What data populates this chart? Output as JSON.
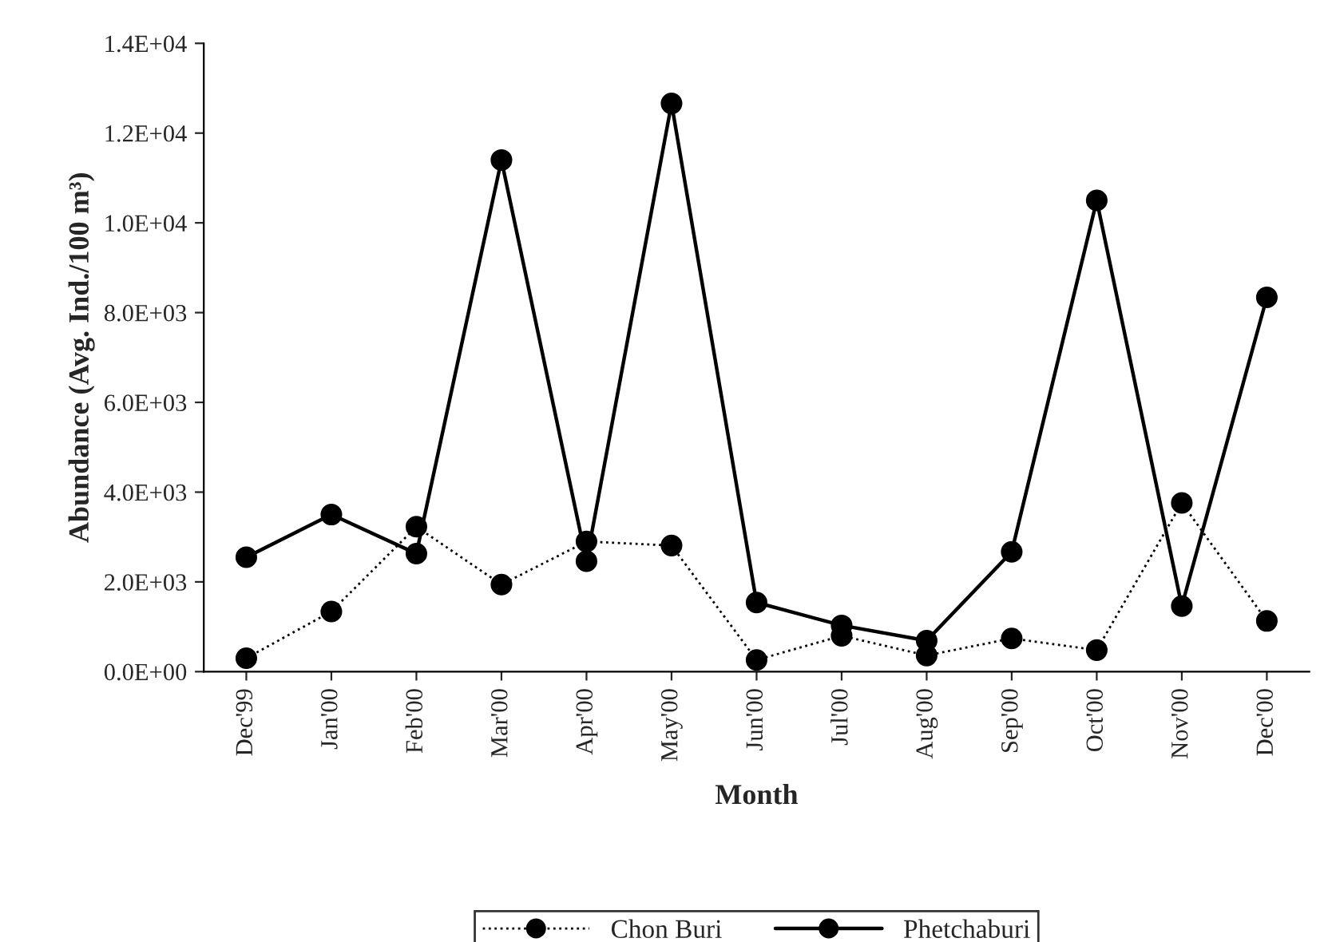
{
  "chart_data": {
    "type": "line",
    "xlabel": "Month",
    "ylabel": "Abundance (Avg. Ind./100 m³)",
    "categories": [
      "Dec'99",
      "Jan'00",
      "Feb'00",
      "Mar'00",
      "Apr'00",
      "May'00",
      "Jun'00",
      "Jul'00",
      "Aug'00",
      "Sep'00",
      "Oct'00",
      "Nov'00",
      "Dec'00"
    ],
    "series": [
      {
        "name": "Chon Buri",
        "color": "#000000",
        "line_style": "dotted",
        "values": [
          300,
          1340,
          3230,
          1940,
          2900,
          2810,
          260,
          800,
          360,
          740,
          480,
          3760,
          1130
        ]
      },
      {
        "name": "Phetchaburi",
        "color": "#000000",
        "line_style": "solid",
        "values": [
          2550,
          3500,
          2630,
          11400,
          2460,
          12660,
          1540,
          1030,
          690,
          2670,
          10500,
          1460,
          8340
        ]
      }
    ],
    "marker": "circle",
    "ylim": [
      0,
      14000
    ],
    "yticks": [
      {
        "value": 0,
        "label": "0.0E+00"
      },
      {
        "value": 2000,
        "label": "2.0E+03"
      },
      {
        "value": 4000,
        "label": "4.0E+03"
      },
      {
        "value": 6000,
        "label": "6.0E+03"
      },
      {
        "value": 8000,
        "label": "8.0E+03"
      },
      {
        "value": 10000,
        "label": "1.0E+04"
      },
      {
        "value": 12000,
        "label": "1.2E+04"
      },
      {
        "value": 14000,
        "label": "1.4E+04"
      }
    ],
    "grid": false,
    "legend": "bottom"
  }
}
